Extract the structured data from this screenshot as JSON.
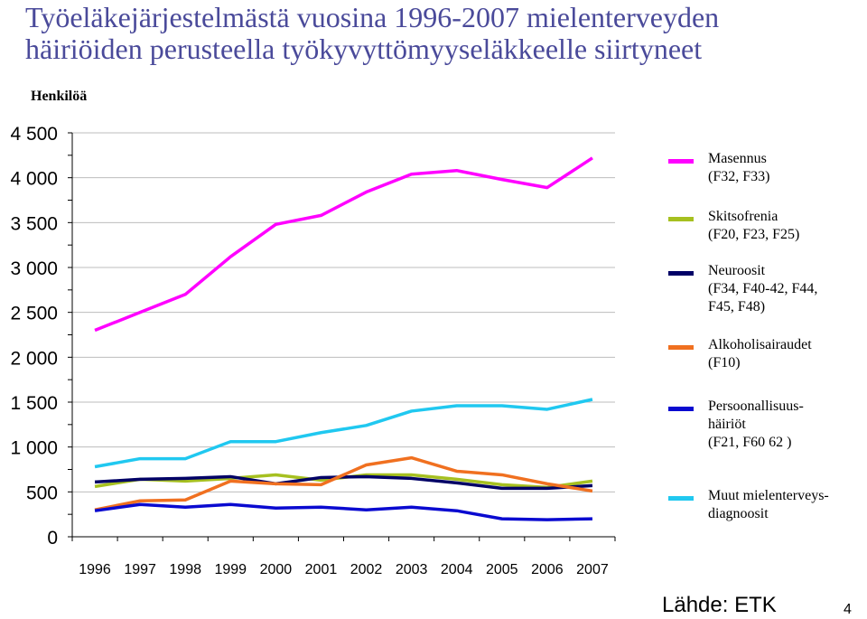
{
  "header": {
    "title": "Työeläkejärjestelmästä vuosina 1996-2007 mielenterveyden häiriöiden perusteella työkyvyttömyyseläkkeelle siirtyneet",
    "unit_label": "Henkilöä"
  },
  "footer": {
    "source": "Lähde: ETK",
    "page_number": "4"
  },
  "chart_data": {
    "type": "line",
    "title": "Työeläkejärjestelmästä vuosina 1996-2007 mielenterveyden häiriöiden perusteella työkyvyttömyyseläkkeelle siirtyneet",
    "ylabel": "Henkilöä",
    "xlabel": "",
    "ylim": [
      0,
      4500
    ],
    "ytick_values": [
      0,
      500,
      1000,
      1500,
      2000,
      2500,
      3000,
      3500,
      4000,
      4500
    ],
    "ytick_labels": [
      "0",
      "500",
      "1 000",
      "1 500",
      "2 000",
      "2 500",
      "3 000",
      "3 500",
      "4 000",
      "4 500"
    ],
    "grid": true,
    "legend_position": "right",
    "x": [
      "1996",
      "1997",
      "1998",
      "1999",
      "2000",
      "2001",
      "2002",
      "2003",
      "2004",
      "2005",
      "2006",
      "2007"
    ],
    "series": [
      {
        "name": "Masennus\n(F32, F33)",
        "color": "#ff00ff",
        "values": [
          2300,
          2500,
          2700,
          3120,
          3480,
          3580,
          3840,
          4040,
          4080,
          3980,
          3890,
          4220
        ]
      },
      {
        "name": "Skitsofrenia\n(F20, F23, F25)",
        "color": "#a6c020",
        "values": [
          560,
          640,
          620,
          650,
          690,
          630,
          690,
          690,
          640,
          580,
          550,
          620
        ]
      },
      {
        "name": "Neuroosit\n(F34, F40-42, F44,\n F45, F48)",
        "color": "#000066",
        "values": [
          610,
          640,
          650,
          670,
          590,
          660,
          670,
          650,
          600,
          540,
          540,
          570
        ]
      },
      {
        "name": "Alkoholisairaudet\n(F10)",
        "color": "#f07020",
        "values": [
          300,
          400,
          410,
          620,
          590,
          580,
          800,
          880,
          730,
          690,
          590,
          510
        ]
      },
      {
        "name": "Persoonallisuus-\nhäiriöt\n(F21, F60 62 )",
        "color": "#0a0ad0",
        "values": [
          290,
          360,
          330,
          360,
          320,
          330,
          300,
          330,
          290,
          200,
          190,
          200
        ]
      },
      {
        "name": "Muut mielenterveys-\ndiagnoosit",
        "color": "#20c8f0",
        "values": [
          780,
          870,
          870,
          1060,
          1060,
          1160,
          1240,
          1400,
          1460,
          1460,
          1420,
          1530
        ]
      }
    ]
  }
}
